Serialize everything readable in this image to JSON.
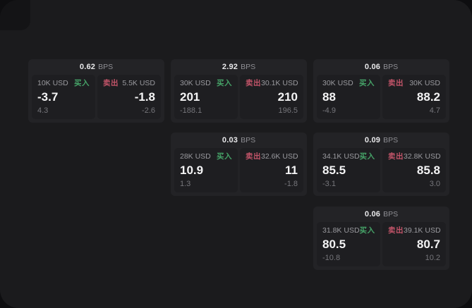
{
  "labels": {
    "buy": "买入",
    "sell": "卖出",
    "bps_unit": "BPS"
  },
  "colors": {
    "window_background": "#1b1b1d",
    "card_background": "#232326",
    "panel_background": "#1e1e21",
    "buy_green": "#46a368",
    "sell_red": "#c25469",
    "primary_text": "#f4f4f5",
    "muted_text": "#76767b"
  },
  "cards": [
    {
      "id": "quote-card-1",
      "col": 0,
      "row": 0,
      "bps": "0.62",
      "buy": {
        "notional": "10K USD",
        "price": "-3.7",
        "delta": "4.3"
      },
      "sell": {
        "notional": "5.5K USD",
        "price": "-1.8",
        "delta": "-2.6"
      }
    },
    {
      "id": "quote-card-2",
      "col": 1,
      "row": 0,
      "bps": "2.92",
      "buy": {
        "notional": "30K USD",
        "price": "201",
        "delta": "-188.1"
      },
      "sell": {
        "notional": "30.1K USD",
        "price": "210",
        "delta": "196.5"
      }
    },
    {
      "id": "quote-card-3",
      "col": 2,
      "row": 0,
      "bps": "0.06",
      "buy": {
        "notional": "30K USD",
        "price": "88",
        "delta": "-4.9"
      },
      "sell": {
        "notional": "30K USD",
        "price": "88.2",
        "delta": "4.7"
      }
    },
    {
      "id": "quote-card-4",
      "col": 1,
      "row": 1,
      "bps": "0.03",
      "buy": {
        "notional": "28K USD",
        "price": "10.9",
        "delta": "1.3"
      },
      "sell": {
        "notional": "32.6K USD",
        "price": "11",
        "delta": "-1.8"
      }
    },
    {
      "id": "quote-card-5",
      "col": 2,
      "row": 1,
      "bps": "0.09",
      "buy": {
        "notional": "34.1K USD",
        "price": "85.5",
        "delta": "-3.1"
      },
      "sell": {
        "notional": "32.8K USD",
        "price": "85.8",
        "delta": "3.0"
      }
    },
    {
      "id": "quote-card-6",
      "col": 2,
      "row": 2,
      "bps": "0.06",
      "buy": {
        "notional": "31.8K USD",
        "price": "80.5",
        "delta": "-10.8"
      },
      "sell": {
        "notional": "39.1K USD",
        "price": "80.7",
        "delta": "10.2"
      }
    }
  ]
}
